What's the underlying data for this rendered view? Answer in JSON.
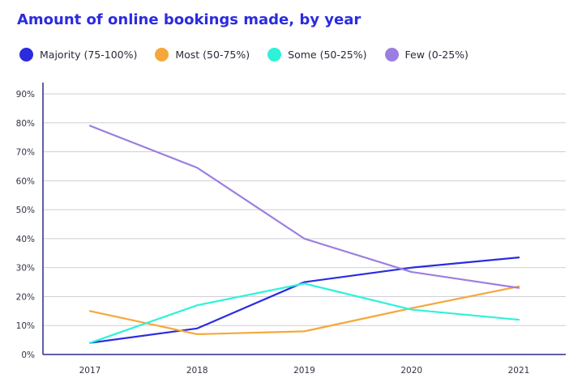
{
  "chart_data": {
    "type": "line",
    "title": "Amount of online bookings made, by year",
    "x": [
      "2017",
      "2018",
      "2019",
      "2020",
      "2021"
    ],
    "ylim": [
      0,
      90
    ],
    "yticks": [
      "0%",
      "10%",
      "20%",
      "30%",
      "40%",
      "50%",
      "60%",
      "70%",
      "80%",
      "90%"
    ],
    "ytick_values": [
      0,
      10,
      20,
      30,
      40,
      50,
      60,
      70,
      80,
      90
    ],
    "grid": true,
    "legend_position": "top-left",
    "series": [
      {
        "name": "Majority (75-100%)",
        "color": "#2b2be0",
        "values": [
          4,
          9,
          25,
          30,
          33.5
        ]
      },
      {
        "name": "Most (50-75%)",
        "color": "#f5a83a",
        "values": [
          15,
          7,
          8,
          16,
          23.5
        ]
      },
      {
        "name": "Some (50-25%)",
        "color": "#2ef2d8",
        "values": [
          4,
          17,
          24.5,
          15.5,
          12
        ]
      },
      {
        "name": "Few (0-25%)",
        "color": "#9b7ee0",
        "values": [
          79,
          64.5,
          40,
          28.5,
          23
        ]
      }
    ]
  }
}
